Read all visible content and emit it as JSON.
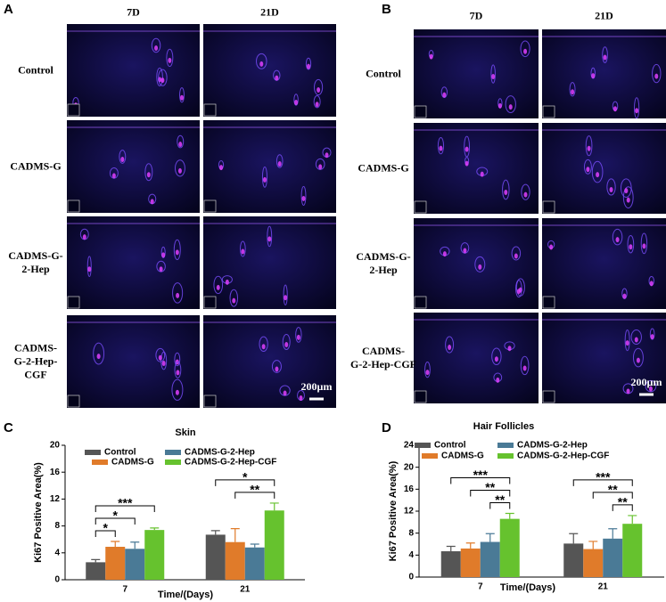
{
  "figure": {
    "panel_letters": [
      "A",
      "B",
      "C",
      "D"
    ],
    "image_panels": [
      {
        "columns": [
          "7D",
          "21D"
        ],
        "rows": [
          "Control",
          "CADMS-G",
          "CADMS-G-\n2-Hep",
          "CADMS-\nG-2-Hep-\nCGF"
        ],
        "scale_bar": "200µm"
      },
      {
        "columns": [
          "7D",
          "21D"
        ],
        "rows": [
          "Control",
          "CADMS-G",
          "CADMS-G-\n2-Hep",
          "CADMS-\nG-2-Hep-CGF"
        ],
        "scale_bar": "200µm"
      }
    ]
  },
  "chart_data": [
    {
      "type": "bar",
      "title": "Skin",
      "y_label": "Ki67 Positive Area(%)",
      "x_label": "Time/(Days)",
      "categories": [
        "7",
        "21"
      ],
      "ylim": [
        0,
        20
      ],
      "yticks": [
        0,
        4,
        8,
        12,
        16,
        20
      ],
      "series": [
        {
          "name": "Control",
          "color": "#555555",
          "values": [
            2.6,
            6.7
          ],
          "errors": [
            0.4,
            0.6
          ]
        },
        {
          "name": "CADMS-G",
          "color": "#e07b2a",
          "values": [
            4.9,
            5.6
          ],
          "errors": [
            0.8,
            2.0
          ]
        },
        {
          "name": "CADMS-G-2-Hep",
          "color": "#4a7a96",
          "values": [
            4.6,
            4.8
          ],
          "errors": [
            1.0,
            0.5
          ]
        },
        {
          "name": "CADMS-G-2-Hep-CGF",
          "color": "#66c22e",
          "values": [
            7.4,
            10.3
          ],
          "errors": [
            0.3,
            1.1
          ]
        }
      ],
      "annotations": [
        {
          "category": 0,
          "series": [
            0,
            1
          ],
          "label": "*"
        },
        {
          "category": 0,
          "series": [
            0,
            2
          ],
          "label": "*"
        },
        {
          "category": 0,
          "series": [
            0,
            3
          ],
          "label": "***"
        },
        {
          "category": 1,
          "series": [
            1,
            3
          ],
          "label": "**"
        },
        {
          "category": 1,
          "series": [
            0,
            3
          ],
          "label": "*"
        }
      ]
    },
    {
      "type": "bar",
      "title": "Hair Follicles",
      "y_label": "Ki67 Positive Area(%)",
      "x_label": "Time/(Days)",
      "categories": [
        "7",
        "21"
      ],
      "ylim": [
        0,
        24
      ],
      "yticks": [
        0,
        4,
        8,
        12,
        16,
        20,
        24
      ],
      "series": [
        {
          "name": "Control",
          "color": "#555555",
          "values": [
            4.7,
            6.1
          ],
          "errors": [
            0.9,
            1.8
          ]
        },
        {
          "name": "CADMS-G",
          "color": "#e07b2a",
          "values": [
            5.2,
            5.1
          ],
          "errors": [
            1.0,
            1.4
          ]
        },
        {
          "name": "CADMS-G-2-Hep",
          "color": "#4a7a96",
          "values": [
            6.4,
            7.0
          ],
          "errors": [
            1.5,
            1.8
          ]
        },
        {
          "name": "CADMS-G-2-Hep-CGF",
          "color": "#66c22e",
          "values": [
            10.6,
            9.7
          ],
          "errors": [
            1.0,
            1.5
          ]
        }
      ],
      "annotations": [
        {
          "category": 0,
          "series": [
            2,
            3
          ],
          "label": "**"
        },
        {
          "category": 0,
          "series": [
            1,
            3
          ],
          "label": "**"
        },
        {
          "category": 0,
          "series": [
            0,
            3
          ],
          "label": "***"
        },
        {
          "category": 1,
          "series": [
            2,
            3
          ],
          "label": "**"
        },
        {
          "category": 1,
          "series": [
            1,
            3
          ],
          "label": "**"
        },
        {
          "category": 1,
          "series": [
            0,
            3
          ],
          "label": "***"
        }
      ]
    }
  ]
}
